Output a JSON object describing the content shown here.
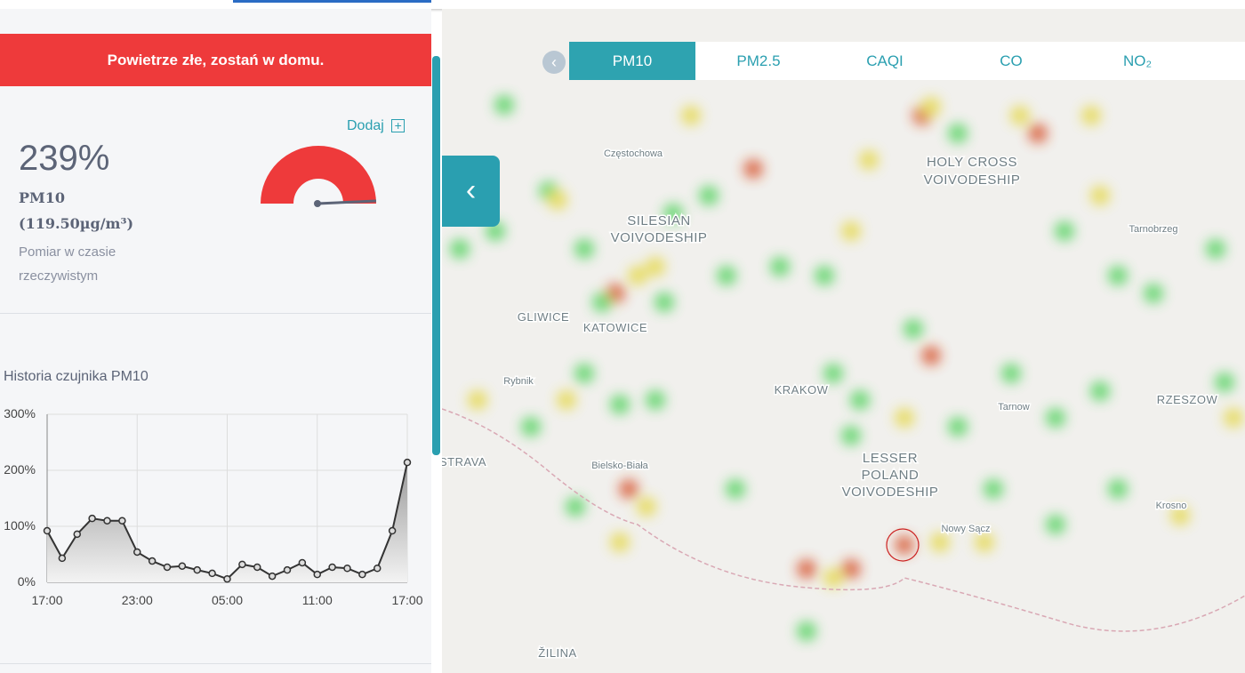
{
  "alert": "Powietrze złe, zostań w domu.",
  "add_button": "Dodaj",
  "reading": {
    "percent": "239%",
    "pollutant": "PM10",
    "concentration": "(119.50µg/m³)",
    "note": "Pomiar w czasie rzeczywistym"
  },
  "history": {
    "type": "line",
    "title": "Historia czujnika PM10",
    "color": "#333333",
    "categories": [
      "17:00",
      null,
      null,
      null,
      null,
      null,
      "23:00",
      null,
      null,
      null,
      null,
      null,
      "05:00",
      null,
      null,
      null,
      null,
      null,
      "11:00",
      null,
      null,
      null,
      null,
      null,
      "17:00"
    ],
    "values": [
      92,
      43,
      86,
      114,
      110,
      110,
      54,
      38,
      27,
      29,
      22,
      16,
      6,
      32,
      27,
      11,
      22,
      35,
      14,
      27,
      25,
      14,
      25,
      92,
      214
    ],
    "ylim": [
      0,
      300
    ],
    "yticks": [
      {
        "value": 0,
        "label": "0%"
      },
      {
        "value": 100,
        "label": "100%"
      },
      {
        "value": 200,
        "label": "200%"
      },
      {
        "value": 300,
        "label": "300%"
      }
    ],
    "grid": true
  },
  "tabs": [
    "PM10",
    "PM2.5",
    "CAQI",
    "CO",
    "NO₂"
  ],
  "map_labels": [
    "Częstochowa",
    "SILESIAN",
    "VOIVODESHIP",
    "GLIWICE",
    "KATOWICE",
    "Rybnik",
    "STRAVA",
    "Bielsko-Biała",
    "KRAKOW",
    "Tarnow",
    "LESSER",
    "POLAND",
    "VOIVODESHIP",
    "Nowy Sącz",
    "HOLY CROSS",
    "VOIVODESHIP",
    "Tarnobrzeg",
    "Krosno",
    "RZESZOW",
    "ŽILINA"
  ]
}
